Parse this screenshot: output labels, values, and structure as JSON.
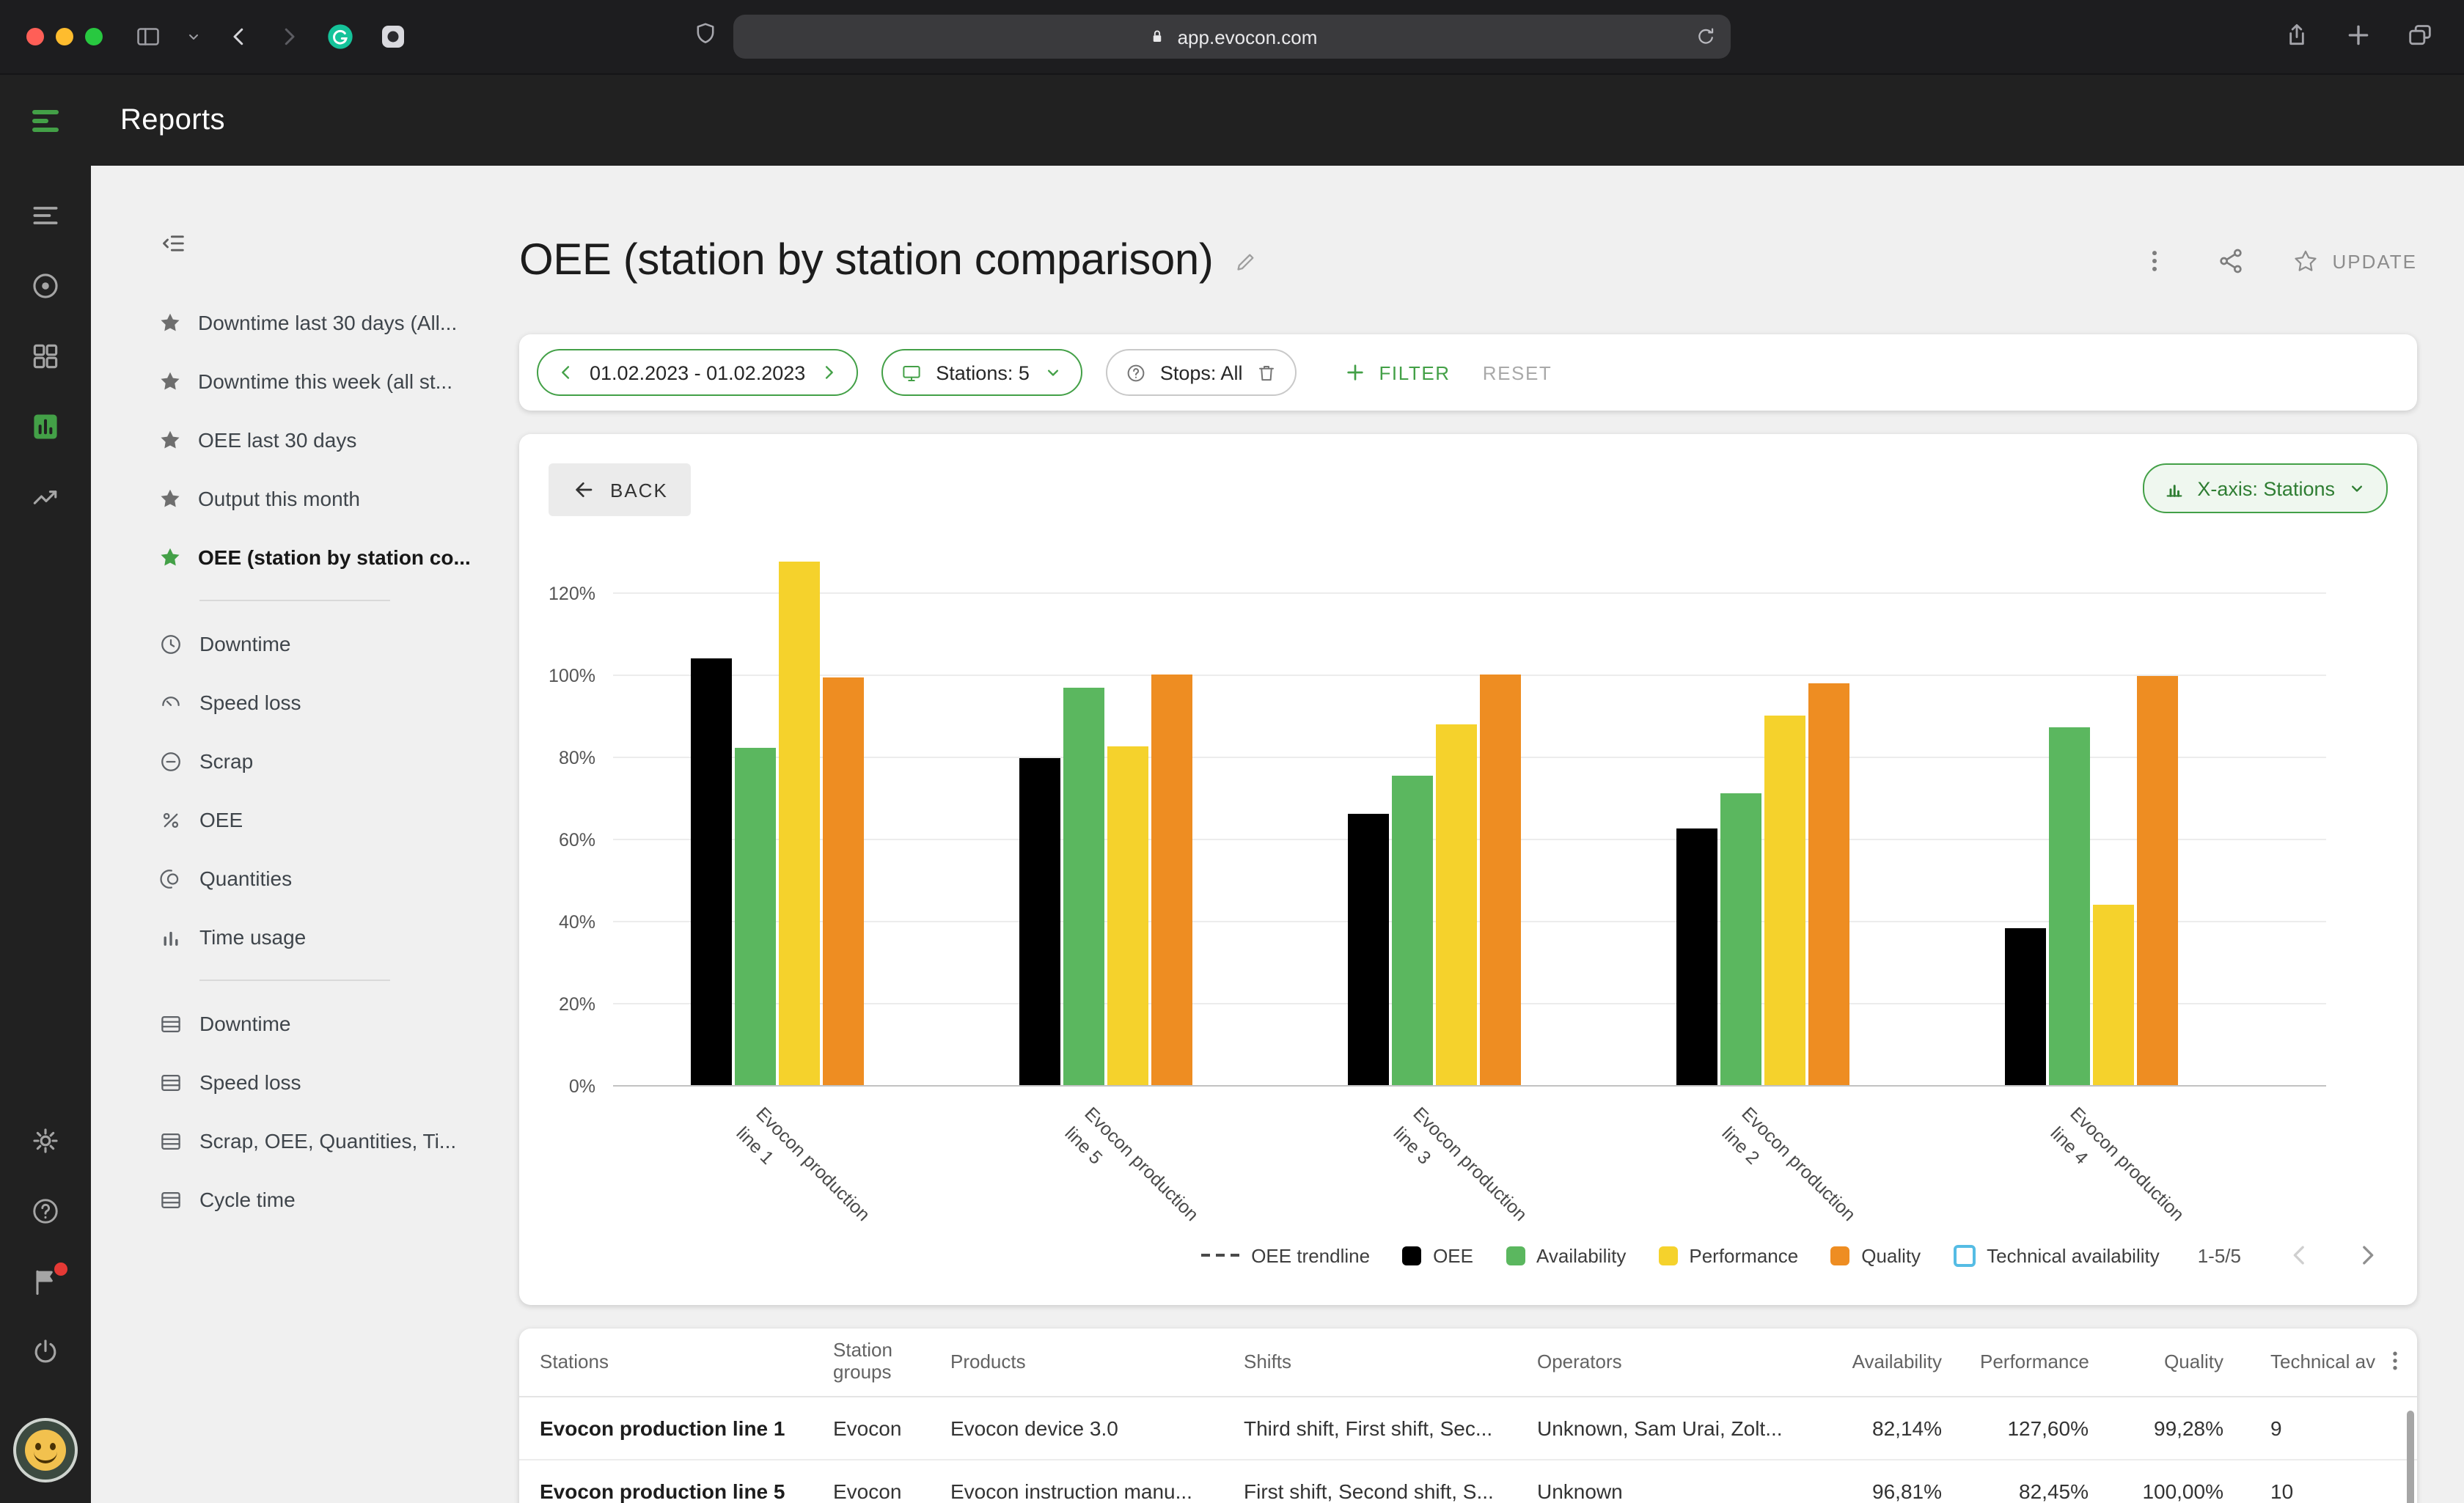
{
  "colors": {
    "accent_green": "#43A047",
    "bar_oee": "#000000",
    "bar_availability": "#5BB75F",
    "bar_performance": "#F5D22C",
    "bar_quality": "#EE8D22",
    "technical_availability": "#55BCE4"
  },
  "browser": {
    "url": "app.evocon.com"
  },
  "app_header": {
    "title": "Reports"
  },
  "rail": {
    "top_icons": [
      "shift-list-icon",
      "factory-circle-icon",
      "dashboard-grid-icon",
      "reports-chart-icon",
      "trends-icon"
    ],
    "active_icon": "reports-chart-icon",
    "bottom_icons": [
      "settings-gear-icon",
      "help-icon",
      "feedback-flag-icon",
      "logout-power-icon",
      "user-avatar"
    ]
  },
  "sidebar": {
    "starred": [
      {
        "label": "Downtime last 30 days (All...",
        "active": false
      },
      {
        "label": "Downtime this week (all st...",
        "active": false
      },
      {
        "label": "OEE last 30 days",
        "active": false
      },
      {
        "label": "Output this month",
        "active": false
      },
      {
        "label": "OEE (station by station co...",
        "active": true
      }
    ],
    "charts": [
      {
        "label": "Downtime",
        "icon": "clock"
      },
      {
        "label": "Speed loss",
        "icon": "gauge"
      },
      {
        "label": "Scrap",
        "icon": "minus-circle"
      },
      {
        "label": "OEE",
        "icon": "percent"
      },
      {
        "label": "Quantities",
        "icon": "rings"
      },
      {
        "label": "Time usage",
        "icon": "bars-mini"
      }
    ],
    "exports": [
      {
        "label": "Downtime",
        "icon": "table"
      },
      {
        "label": "Speed loss",
        "icon": "table"
      },
      {
        "label": "Scrap, OEE, Quantities, Ti...",
        "icon": "table"
      },
      {
        "label": "Cycle time",
        "icon": "table"
      }
    ]
  },
  "main": {
    "title": "OEE (station by station comparison)",
    "update_label": "UPDATE",
    "filters": {
      "date_range": "01.02.2023 - 01.02.2023",
      "stations": "Stations: 5",
      "stops": "Stops: All",
      "filter_label": "FILTER",
      "reset_label": "RESET"
    },
    "chart_card": {
      "back_label": "BACK",
      "xaxis_label": "X-axis: Stations",
      "pagination": "1-5/5"
    }
  },
  "chart_data": {
    "type": "bar",
    "title": "OEE (station by station comparison)",
    "categories": [
      "Evocon production line 1",
      "Evocon production line 5",
      "Evocon production line 3",
      "Evocon production line 2",
      "Evocon production line 4"
    ],
    "series": [
      {
        "name": "OEE",
        "color": "#000000",
        "values": [
          104.1,
          79.8,
          66.2,
          62.6,
          38.2
        ]
      },
      {
        "name": "Availability",
        "color": "#5BB75F",
        "values": [
          82.14,
          96.81,
          75.2,
          71.0,
          87.0
        ]
      },
      {
        "name": "Performance",
        "color": "#F5D22C",
        "values": [
          127.6,
          82.45,
          88.0,
          90.0,
          44.0
        ]
      },
      {
        "name": "Quality",
        "color": "#EE8D22",
        "values": [
          99.28,
          100.0,
          100.0,
          98.0,
          99.8
        ]
      }
    ],
    "yticks": [
      "0%",
      "20%",
      "40%",
      "60%",
      "80%",
      "100%",
      "120%"
    ],
    "ylim": [
      0,
      131
    ],
    "grid": true,
    "legend_position": "bottom",
    "legend": [
      {
        "label": "OEE trendline",
        "swatch": "dash",
        "color": "#4a4a4a"
      },
      {
        "label": "OEE",
        "swatch": "square",
        "color": "#000000"
      },
      {
        "label": "Availability",
        "swatch": "square",
        "color": "#5BB75F"
      },
      {
        "label": "Performance",
        "swatch": "square",
        "color": "#F5D22C"
      },
      {
        "label": "Quality",
        "swatch": "square",
        "color": "#EE8D22"
      },
      {
        "label": "Technical availability",
        "swatch": "outline",
        "color": "#55BCE4"
      }
    ]
  },
  "table": {
    "columns": [
      {
        "label": "Stations",
        "align": "left"
      },
      {
        "label": "Station groups",
        "align": "left"
      },
      {
        "label": "Products",
        "align": "left"
      },
      {
        "label": "Shifts",
        "align": "left"
      },
      {
        "label": "Operators",
        "align": "left"
      },
      {
        "label": "Availability",
        "align": "right"
      },
      {
        "label": "Performance",
        "align": "right"
      },
      {
        "label": "Quality",
        "align": "right"
      },
      {
        "label": "Technical av",
        "align": "left"
      }
    ],
    "rows": [
      [
        "Evocon production line 1",
        "Evocon",
        "Evocon device 3.0",
        "Third shift, First shift, Sec...",
        "Unknown, Sam Urai, Zolt...",
        "82,14%",
        "127,60%",
        "99,28%",
        "9"
      ],
      [
        "Evocon production line 5",
        "Evocon",
        "Evocon instruction manu...",
        "First shift, Second shift, S...",
        "Unknown",
        "96,81%",
        "82,45%",
        "100,00%",
        "10"
      ]
    ]
  }
}
